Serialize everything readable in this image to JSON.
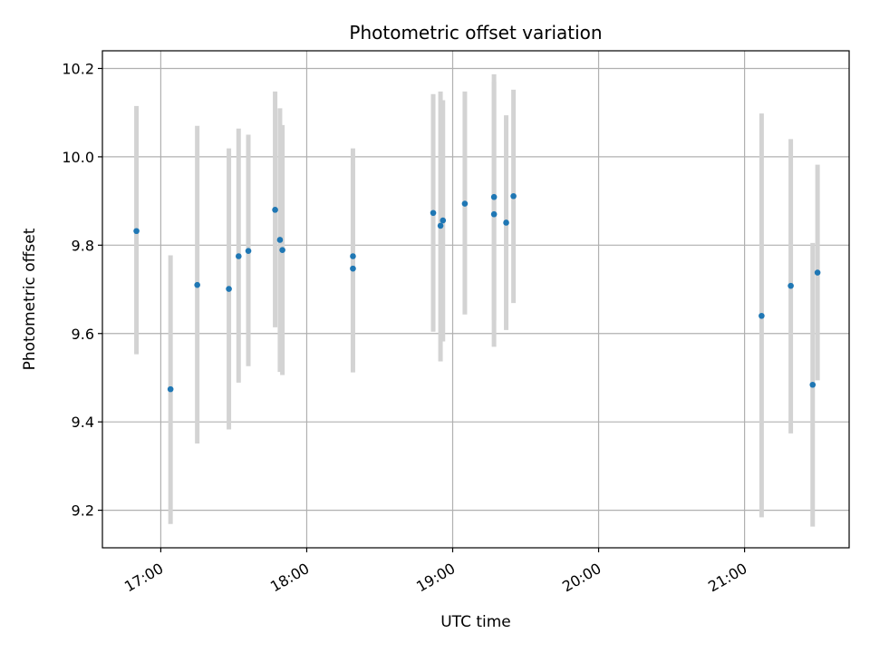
{
  "chart_data": {
    "type": "scatter",
    "title": "Photometric offset variation",
    "xlabel": "UTC time",
    "ylabel": "Photometric offset",
    "xlim": [
      "16:36",
      "21:43"
    ],
    "ylim": [
      9.115,
      10.24
    ],
    "x_ticks": [
      "17:00",
      "18:00",
      "19:00",
      "20:00",
      "21:00"
    ],
    "y_ticks": [
      "9.2",
      "9.4",
      "9.6",
      "9.8",
      "10.0",
      "10.2"
    ],
    "grid": true,
    "legend": false,
    "colors": {
      "point": "#1f77b4",
      "errorbar": "#d3d3d3",
      "grid": "#b0b0b0"
    },
    "points": [
      {
        "x": "16:50",
        "y": 9.832,
        "low": 9.553,
        "high": 10.115
      },
      {
        "x": "17:04",
        "y": 9.474,
        "low": 9.169,
        "high": 9.777
      },
      {
        "x": "17:15",
        "y": 9.71,
        "low": 9.351,
        "high": 10.07
      },
      {
        "x": "17:28",
        "y": 9.701,
        "low": 9.383,
        "high": 10.019
      },
      {
        "x": "17:32",
        "y": 9.775,
        "low": 9.489,
        "high": 10.064
      },
      {
        "x": "17:36",
        "y": 9.787,
        "low": 9.526,
        "high": 10.05
      },
      {
        "x": "17:47",
        "y": 9.88,
        "low": 9.614,
        "high": 10.148
      },
      {
        "x": "17:49",
        "y": 9.812,
        "low": 9.513,
        "high": 10.11
      },
      {
        "x": "17:50",
        "y": 9.789,
        "low": 9.506,
        "high": 10.072
      },
      {
        "x": "18:19",
        "y": 9.747,
        "low": 9.512,
        "high": 9.982
      },
      {
        "x": "18:19",
        "y": 9.775,
        "low": 9.531,
        "high": 10.019
      },
      {
        "x": "18:52",
        "y": 9.873,
        "low": 9.604,
        "high": 10.142
      },
      {
        "x": "18:55",
        "y": 9.844,
        "low": 9.537,
        "high": 10.148
      },
      {
        "x": "18:56",
        "y": 9.856,
        "low": 9.582,
        "high": 10.128
      },
      {
        "x": "19:05",
        "y": 9.894,
        "low": 9.643,
        "high": 10.148
      },
      {
        "x": "19:17",
        "y": 9.87,
        "low": 9.57,
        "high": 10.17
      },
      {
        "x": "19:17",
        "y": 9.909,
        "low": 9.63,
        "high": 10.187
      },
      {
        "x": "19:22",
        "y": 9.851,
        "low": 9.608,
        "high": 10.094
      },
      {
        "x": "19:25",
        "y": 9.911,
        "low": 9.669,
        "high": 10.152
      },
      {
        "x": "21:07",
        "y": 9.64,
        "low": 9.184,
        "high": 10.098
      },
      {
        "x": "21:19",
        "y": 9.708,
        "low": 9.374,
        "high": 10.04
      },
      {
        "x": "21:28",
        "y": 9.484,
        "low": 9.163,
        "high": 9.805
      },
      {
        "x": "21:30",
        "y": 9.738,
        "low": 9.494,
        "high": 9.982
      }
    ]
  }
}
